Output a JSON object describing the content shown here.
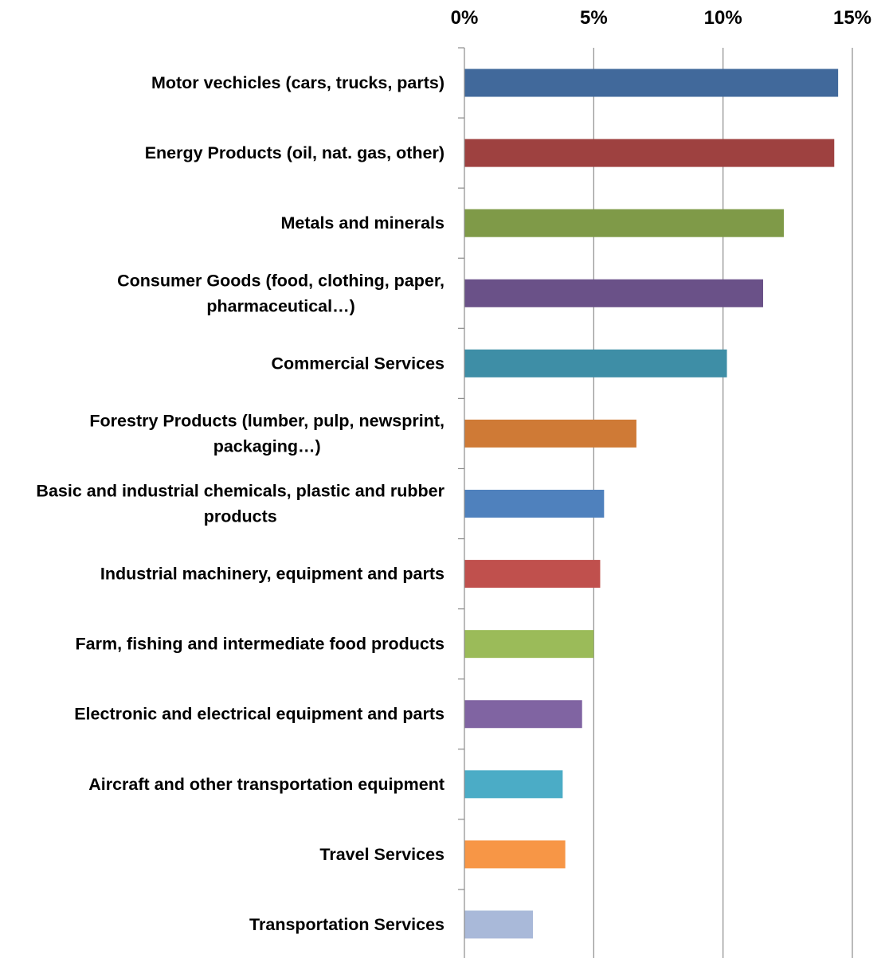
{
  "chart_data": {
    "type": "bar",
    "orientation": "horizontal",
    "title": "",
    "xlabel": "",
    "ylabel": "",
    "xlim": [
      0,
      15
    ],
    "x_ticks": [
      "0%",
      "5%",
      "10%",
      "15%"
    ],
    "x_axis_position": "top",
    "grid": true,
    "legend": "none",
    "categories": [
      "Motor vechicles (cars, trucks, parts)",
      "Energy Products (oil, nat. gas, other)",
      "Metals and minerals",
      "Consumer Goods (food, clothing, paper, pharmaceutical…)",
      "Commercial Services",
      "Forestry Products (lumber, pulp, newsprint, packaging…)",
      "Basic and industrial chemicals, plastic and rubber products",
      "Industrial machinery, equipment and parts",
      "Farm, fishing and intermediate food products",
      "Electronic and electrical equipment and parts",
      "Aircraft and other transportation equipment",
      "Travel Services",
      "Transportation Services"
    ],
    "category_lines": [
      [
        "Motor vechicles (cars, trucks, parts)"
      ],
      [
        "Energy Products (oil, nat. gas, other)"
      ],
      [
        "Metals and minerals"
      ],
      [
        "Consumer Goods (food, clothing, paper,",
        "pharmaceutical…)"
      ],
      [
        "Commercial Services"
      ],
      [
        "Forestry Products (lumber, pulp, newsprint,",
        "packaging…)"
      ],
      [
        "Basic and industrial chemicals, plastic and rubber",
        "products"
      ],
      [
        "Industrial machinery, equipment and parts"
      ],
      [
        "Farm, fishing and intermediate food products"
      ],
      [
        "Electronic and electrical equipment and parts"
      ],
      [
        "Aircraft and other transportation equipment"
      ],
      [
        "Travel Services"
      ],
      [
        "Transportation Services"
      ]
    ],
    "values": [
      14.45,
      14.3,
      12.35,
      11.55,
      10.15,
      6.65,
      5.4,
      5.25,
      5.0,
      4.55,
      3.8,
      3.9,
      2.65
    ],
    "colors": [
      "#41699b",
      "#9e4140",
      "#7f9a48",
      "#6a5188",
      "#3e8ea6",
      "#cf7a36",
      "#4f81bd",
      "#c0504d",
      "#9bbb59",
      "#8064a2",
      "#4bacc6",
      "#f79646",
      "#a9b9d9"
    ]
  }
}
